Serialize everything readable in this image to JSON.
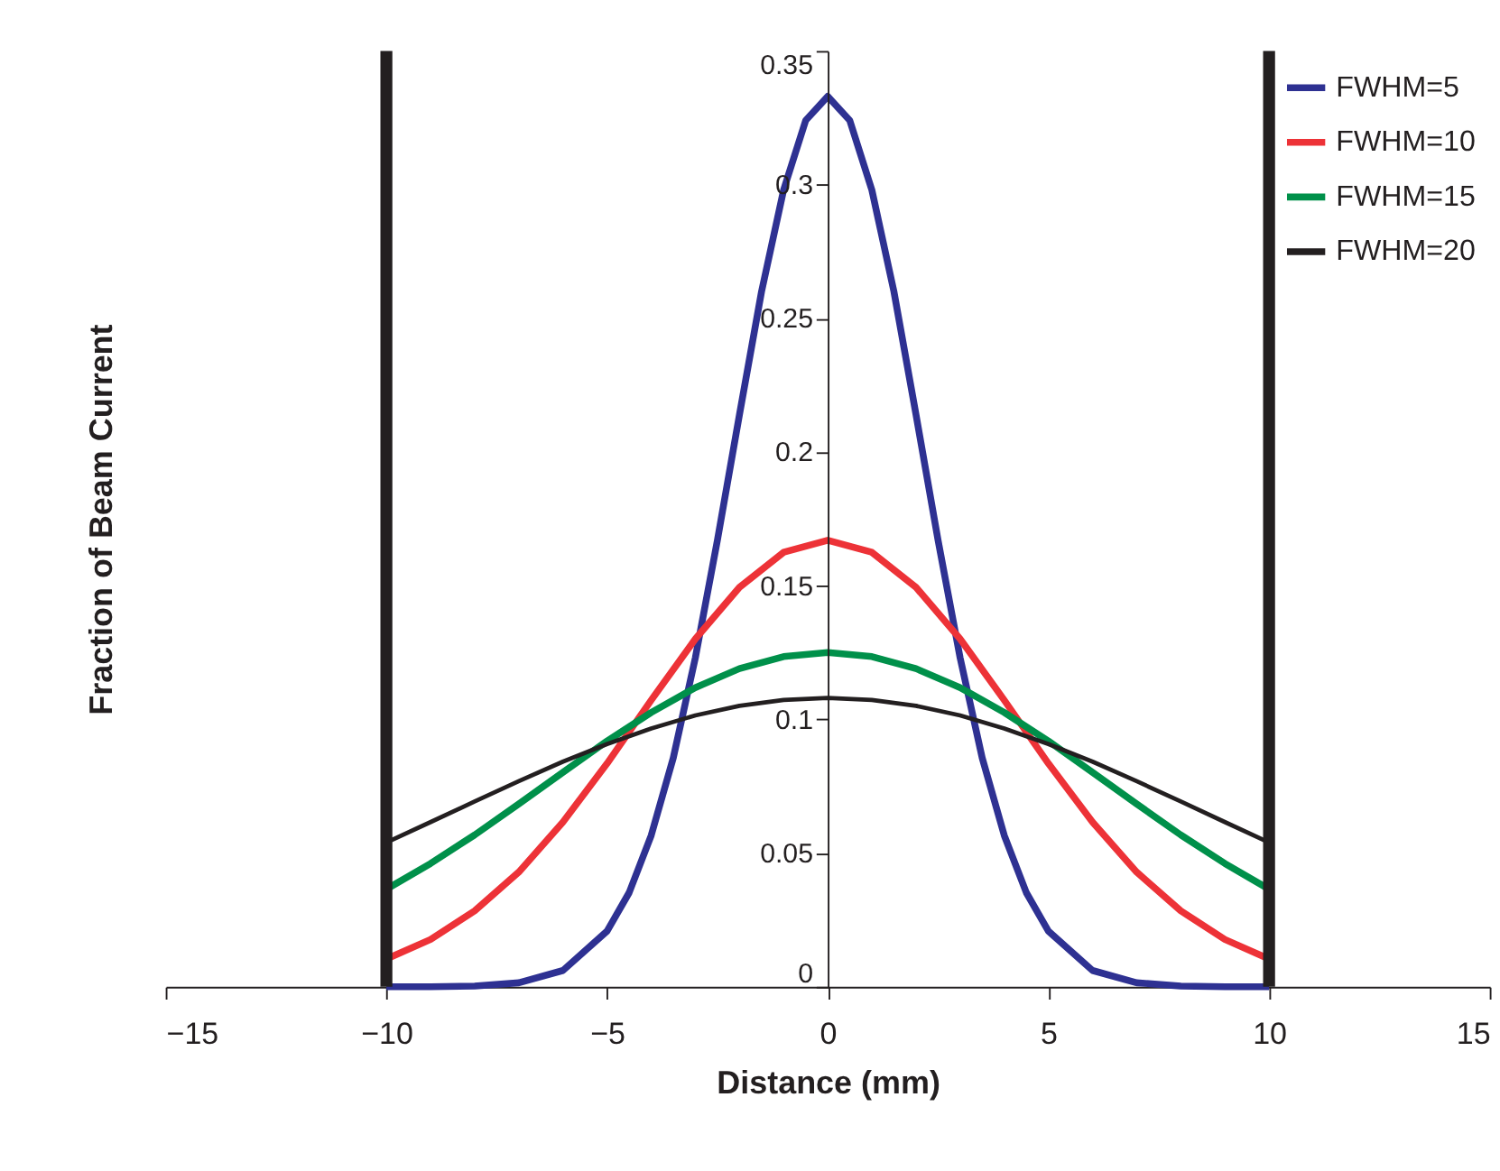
{
  "chart_data": {
    "type": "line",
    "xlabel": "Distance (mm)",
    "ylabel": "Fraction of Beam Current",
    "xlim": [
      -15,
      15
    ],
    "xticks": [
      -15,
      -10,
      -5,
      0,
      5,
      10,
      15
    ],
    "ylim": [
      0,
      0.35
    ],
    "yticks": [
      0,
      0.05,
      0.1,
      0.15,
      0.2,
      0.25,
      0.3,
      0.35
    ],
    "grid": false,
    "legend": "top right",
    "marker": "none",
    "line_style": "solid",
    "series": [
      {
        "name": "FWHM=5",
        "color": "#2e3192",
        "x": [
          -10,
          -9,
          -8,
          -7,
          -6,
          -5,
          -4.5,
          -4,
          -3.5,
          -3,
          -2.5,
          -2,
          -1.5,
          -1,
          -0.5,
          0,
          0.5,
          1,
          1.5,
          2,
          2.5,
          3,
          3.5,
          4,
          4.5,
          5,
          6,
          7,
          8,
          9,
          10
        ],
        "values": [
          0,
          0,
          0.0003,
          0.0015,
          0.0061,
          0.0208,
          0.0352,
          0.0566,
          0.0856,
          0.123,
          0.167,
          0.214,
          0.26,
          0.298,
          0.324,
          0.333,
          0.324,
          0.298,
          0.26,
          0.214,
          0.167,
          0.123,
          0.0856,
          0.0566,
          0.0352,
          0.0208,
          0.0061,
          0.0015,
          0.0003,
          0,
          0
        ]
      },
      {
        "name": "FWHM=10",
        "color": "#ed3237",
        "x": [
          -10,
          -9,
          -8,
          -7,
          -6,
          -5,
          -4,
          -3,
          -2,
          -1,
          0,
          1,
          2,
          3,
          4,
          5,
          6,
          7,
          8,
          9,
          10
        ],
        "values": [
          0.0104,
          0.0177,
          0.0284,
          0.0429,
          0.0616,
          0.0835,
          0.1072,
          0.1301,
          0.1494,
          0.1625,
          0.167,
          0.1625,
          0.1494,
          0.1301,
          0.1072,
          0.0835,
          0.0616,
          0.0429,
          0.0284,
          0.0177,
          0.0104
        ]
      },
      {
        "name": "FWHM=15",
        "color": "#00904a",
        "x": [
          -10,
          -9,
          -8,
          -7,
          -6,
          -5,
          -4,
          -3,
          -2,
          -1,
          0,
          1,
          2,
          3,
          4,
          5,
          6,
          7,
          8,
          9,
          10
        ],
        "values": [
          0.0365,
          0.0461,
          0.0568,
          0.0684,
          0.0802,
          0.0919,
          0.1026,
          0.1119,
          0.119,
          0.1235,
          0.125,
          0.1235,
          0.119,
          0.1119,
          0.1026,
          0.0919,
          0.0802,
          0.0684,
          0.0568,
          0.0461,
          0.0365
        ]
      },
      {
        "name": "FWHM=20",
        "color": "#231f20",
        "x": [
          -10,
          -9,
          -8,
          -7,
          -6,
          -5,
          -4,
          -3,
          -2,
          -1,
          0,
          1,
          2,
          3,
          4,
          5,
          6,
          7,
          8,
          9,
          10
        ],
        "values": [
          0.054,
          0.0616,
          0.0693,
          0.0769,
          0.0842,
          0.0908,
          0.0966,
          0.1015,
          0.1051,
          0.1073,
          0.108,
          0.1073,
          0.1051,
          0.1015,
          0.0966,
          0.0908,
          0.0842,
          0.0769,
          0.0693,
          0.0616,
          0.054
        ]
      }
    ],
    "ref_lines": [
      {
        "axis": "x",
        "value": -10,
        "color": "#231f20"
      },
      {
        "axis": "x",
        "value": 10,
        "color": "#231f20"
      }
    ]
  }
}
